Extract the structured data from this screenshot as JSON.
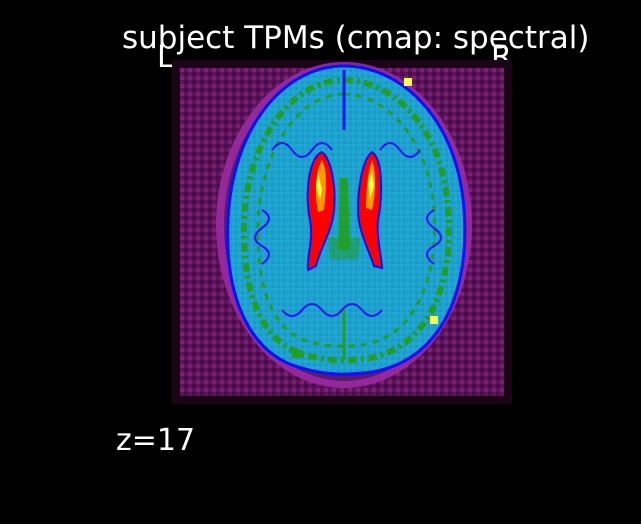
{
  "figure": {
    "title": "subject TPMs (cmap: spectral)",
    "orientation_left": "L",
    "orientation_right": "R",
    "slice_label": "z=17"
  },
  "colors": {
    "background": "#000000",
    "text": "#ffffff",
    "border_dark": "#1a0516",
    "outer_tissue": "#5a145a",
    "brain_fill": "#1ea2cf",
    "cortex_green": "#22a01c",
    "contour_blue": "#0a10ff",
    "ventricle_red": "#ff0000",
    "ventricle_orange": "#ff9900",
    "ventricle_yellow": "#ffff44"
  }
}
